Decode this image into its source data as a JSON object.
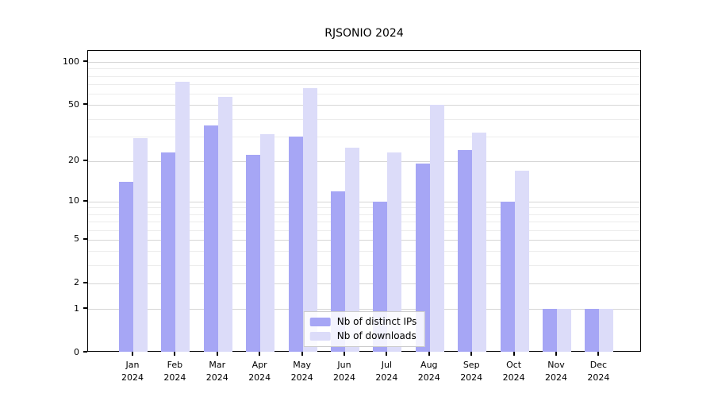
{
  "title": "RJSONIO 2024",
  "chart_data": {
    "type": "bar",
    "title": "RJSONIO 2024",
    "categories": [
      "Jan 2024",
      "Feb 2024",
      "Mar 2024",
      "Apr 2024",
      "May 2024",
      "Jun 2024",
      "Jul 2024",
      "Aug 2024",
      "Sep 2024",
      "Oct 2024",
      "Nov 2024",
      "Dec 2024"
    ],
    "x_months": [
      "Jan",
      "Feb",
      "Mar",
      "Apr",
      "May",
      "Jun",
      "Jul",
      "Aug",
      "Sep",
      "Oct",
      "Nov",
      "Dec"
    ],
    "x_year": "2024",
    "series": [
      {
        "name": "Nb of distinct IPs",
        "color": "#a6a6f5",
        "values": [
          14,
          23,
          36,
          22,
          30,
          12,
          10,
          19,
          24,
          10,
          1,
          1
        ]
      },
      {
        "name": "Nb of downloads",
        "color": "#dcdcf9",
        "values": [
          29,
          73,
          57,
          31,
          66,
          25,
          23,
          50,
          32,
          17,
          1,
          1
        ]
      }
    ],
    "yscale": "log1p",
    "ylim": [
      0,
      110
    ],
    "yticks": [
      0,
      1,
      2,
      5,
      10,
      20,
      50,
      100
    ],
    "minor_gridlines": [
      3,
      4,
      6,
      7,
      8,
      9,
      30,
      40,
      60,
      70,
      80,
      90
    ],
    "grid": true,
    "legend_position": "bottom-center"
  },
  "legend": {
    "items": [
      {
        "label": "Nb of distinct IPs",
        "color": "#a6a6f5"
      },
      {
        "label": "Nb of downloads",
        "color": "#dcdcf9"
      }
    ]
  }
}
